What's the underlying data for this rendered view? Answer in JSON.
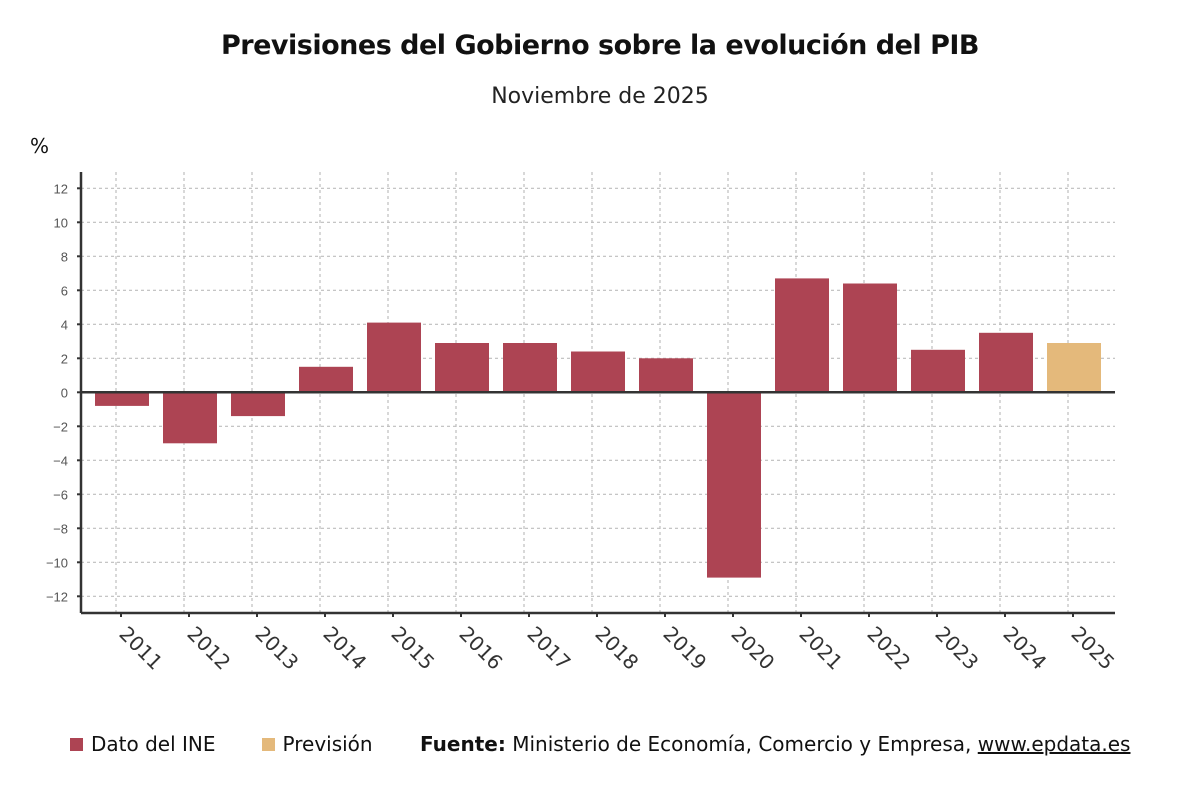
{
  "chart_data": {
    "type": "bar",
    "title": "Previsiones del Gobierno sobre la evolución del PIB",
    "subtitle": "Noviembre de 2025",
    "ylabel": "%",
    "xlabel": "",
    "ylim": [
      -13,
      13
    ],
    "yticks": [
      12,
      10,
      8,
      6,
      4,
      2,
      0,
      -2,
      -4,
      -6,
      -8,
      -10,
      -12
    ],
    "ytick_labels": [
      "12",
      "10",
      "8",
      "6",
      "4",
      "2",
      "0",
      "−2",
      "−4",
      "−6",
      "−8",
      "−10",
      "−12"
    ],
    "grid": true,
    "categories": [
      "2011",
      "2012",
      "2013",
      "2014",
      "2015",
      "2016",
      "2017",
      "2018",
      "2019",
      "2020",
      "2021",
      "2022",
      "2023",
      "2024",
      "2025"
    ],
    "values": [
      -0.8,
      -3.0,
      -1.4,
      1.5,
      4.1,
      2.9,
      2.9,
      2.4,
      2.0,
      -10.9,
      6.7,
      6.4,
      2.5,
      3.5,
      2.9
    ],
    "kinds": [
      "dato",
      "dato",
      "dato",
      "dato",
      "dato",
      "dato",
      "dato",
      "dato",
      "dato",
      "dato",
      "dato",
      "dato",
      "dato",
      "dato",
      "prevision"
    ],
    "series": [
      {
        "name": "Dato del INE",
        "key": "dato",
        "color": "#ad4453"
      },
      {
        "name": "Previsión",
        "key": "prevision",
        "color": "#e4b97b"
      }
    ],
    "legend_position": "bottom-left"
  },
  "source": {
    "label": "Fuente:",
    "text": " Ministerio de Economía, Comercio y Empresa, ",
    "link": "www.epdata.es"
  }
}
